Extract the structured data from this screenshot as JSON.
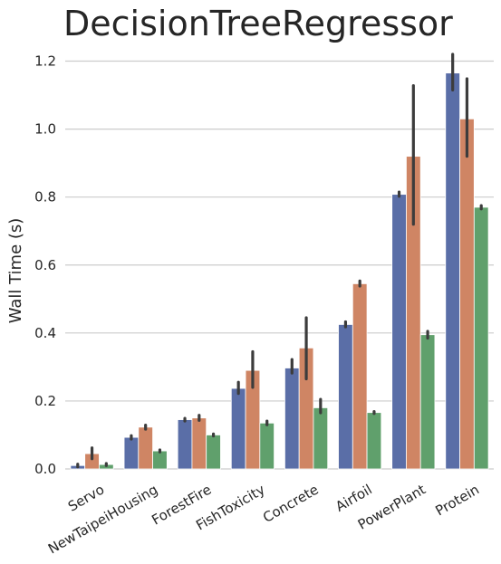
{
  "chart_data": {
    "type": "bar",
    "title": "DecisionTreeRegressor",
    "xlabel": "",
    "ylabel": "Wall Time (s)",
    "ylim": [
      0,
      1.22
    ],
    "yticks": [
      "0.0",
      "0.2",
      "0.4",
      "0.6",
      "0.8",
      "1.0",
      "1.2"
    ],
    "grid": true,
    "legend": "none",
    "categories": [
      "Servo",
      "NewTaipeiHousing",
      "ForestFire",
      "FishToxicity",
      "Concrete",
      "Airfoil",
      "PowerPlant",
      "Protein"
    ],
    "series": [
      {
        "color": "#5a6ea7",
        "values": [
          0.01,
          0.093,
          0.145,
          0.237,
          0.297,
          0.425,
          0.808,
          1.165
        ],
        "err_low": [
          0.006,
          0.088,
          0.141,
          0.222,
          0.282,
          0.418,
          0.802,
          1.115
        ],
        "err_high": [
          0.014,
          0.098,
          0.149,
          0.255,
          0.322,
          0.433,
          0.815,
          1.22
        ]
      },
      {
        "color": "#cf8564",
        "values": [
          0.045,
          0.123,
          0.15,
          0.29,
          0.356,
          0.545,
          0.92,
          1.03
        ],
        "err_low": [
          0.03,
          0.117,
          0.143,
          0.24,
          0.265,
          0.538,
          0.72,
          0.92
        ],
        "err_high": [
          0.062,
          0.129,
          0.158,
          0.345,
          0.445,
          0.553,
          1.128,
          1.148
        ]
      },
      {
        "color": "#60a06c",
        "values": [
          0.013,
          0.053,
          0.1,
          0.135,
          0.18,
          0.166,
          0.395,
          0.77
        ],
        "err_low": [
          0.01,
          0.05,
          0.097,
          0.13,
          0.165,
          0.163,
          0.385,
          0.765
        ],
        "err_high": [
          0.016,
          0.056,
          0.103,
          0.141,
          0.205,
          0.169,
          0.405,
          0.775
        ]
      }
    ]
  }
}
